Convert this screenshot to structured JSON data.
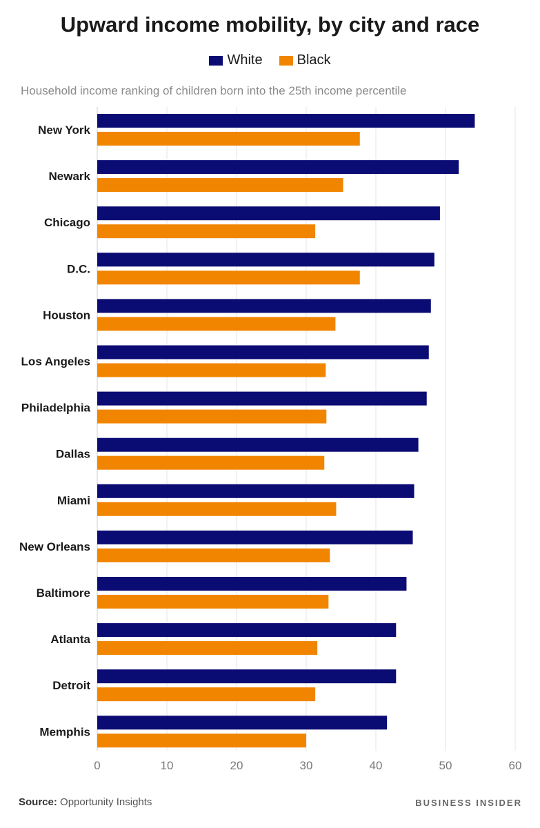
{
  "title": "Upward income mobility, by city and race",
  "subtitle": "Household income ranking of children born into the 25th income percentile",
  "footer": {
    "source_label": "Source:",
    "source_text": "Opportunity Insights",
    "brand": "BUSINESS INSIDER"
  },
  "colors": {
    "white": "#0b0b74",
    "black": "#f28500",
    "grid": "#e6e6e6"
  },
  "chart_data": {
    "type": "bar",
    "orientation": "horizontal",
    "title": "Upward income mobility, by city and race",
    "subtitle": "Household income ranking of children born into the 25th income percentile",
    "categories": [
      "New York",
      "Newark",
      "Chicago",
      "D.C.",
      "Houston",
      "Los Angeles",
      "Philadelphia",
      "Dallas",
      "Miami",
      "New Orleans",
      "Baltimore",
      "Atlanta",
      "Detroit",
      "Memphis"
    ],
    "series": [
      {
        "name": "White",
        "values": [
          54.2,
          51.9,
          49.2,
          48.4,
          47.9,
          47.6,
          47.3,
          46.1,
          45.5,
          45.3,
          44.4,
          42.9,
          42.9,
          41.6
        ]
      },
      {
        "name": "Black",
        "values": [
          37.7,
          35.3,
          31.3,
          37.7,
          34.2,
          32.8,
          32.9,
          32.6,
          34.3,
          33.4,
          33.2,
          31.6,
          31.3,
          30.0
        ]
      }
    ],
    "xlim": [
      0,
      60
    ],
    "xticks": [
      "0",
      "10",
      "20",
      "30",
      "40",
      "50",
      "60"
    ],
    "grid": true,
    "legend_position": "top-center"
  }
}
